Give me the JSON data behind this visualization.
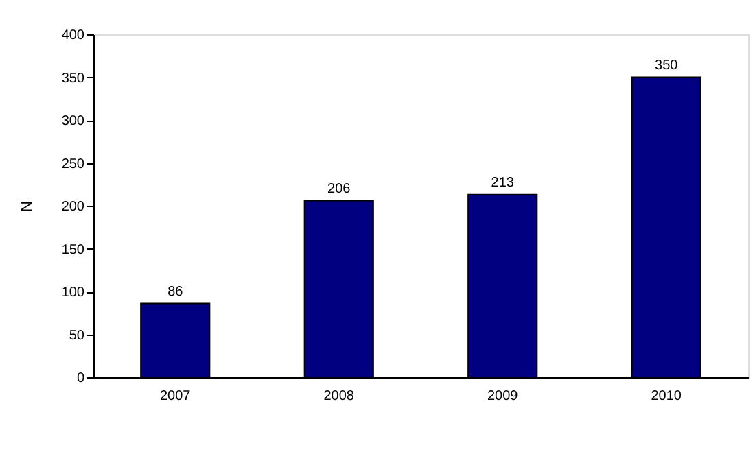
{
  "chart_data": {
    "type": "bar",
    "ylabel": "N",
    "categories": [
      "2007",
      "2008",
      "2009",
      "2010"
    ],
    "values": [
      86,
      206,
      213,
      350
    ],
    "color": "#000080",
    "ylim": [
      0,
      400
    ],
    "yticks": [
      0,
      50,
      100,
      150,
      200,
      250,
      300,
      350,
      400
    ],
    "data_labels": true,
    "grid": false
  }
}
